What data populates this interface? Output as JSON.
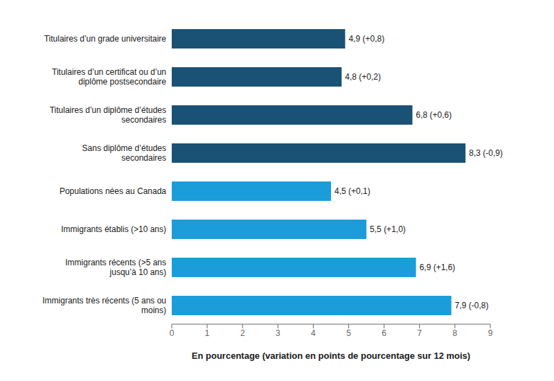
{
  "chart_data": {
    "type": "bar",
    "orientation": "horizontal",
    "categories": [
      "Immigrants très récents (5 ans ou\nmoins)",
      "Immigrants récents (>5 ans\njusqu’à 10 ans)",
      "Immigrants établis (>10 ans)",
      "Populations nées au Canada",
      "Sans diplôme d’études\nsecondaires",
      "Titulaires d’un diplôme d’études\nsecondaires",
      "Titulaires d’un certificat ou d’un\ndiplôme postsecondaire",
      "Titulaires d’un grade universitaire"
    ],
    "values": [
      7.9,
      6.9,
      5.5,
      4.5,
      8.3,
      6.8,
      4.8,
      4.9
    ],
    "value_labels": [
      "7,9 (-0,8)",
      "6,9 (+1,6)",
      "5,5 (+1,0)",
      "4,5 (+0,1)",
      "8,3 (-0,9)",
      "6,8 (+0,6)",
      "4,8 (+0,2)",
      "4,9 (+0,8)"
    ],
    "data_labels": true,
    "colors": [
      "#1B9DD9",
      "#1B9DD9",
      "#1B9DD9",
      "#1B9DD9",
      "#1A5276",
      "#1A5276",
      "#1A5276",
      "#1A5276"
    ],
    "xlabel": "En pourcentage (variation en points de pourcentage sur 12 mois)",
    "xlim": [
      0,
      9
    ],
    "xticks": [
      0,
      1,
      2,
      3,
      4,
      5,
      6,
      7,
      8,
      9
    ],
    "grid": false
  }
}
